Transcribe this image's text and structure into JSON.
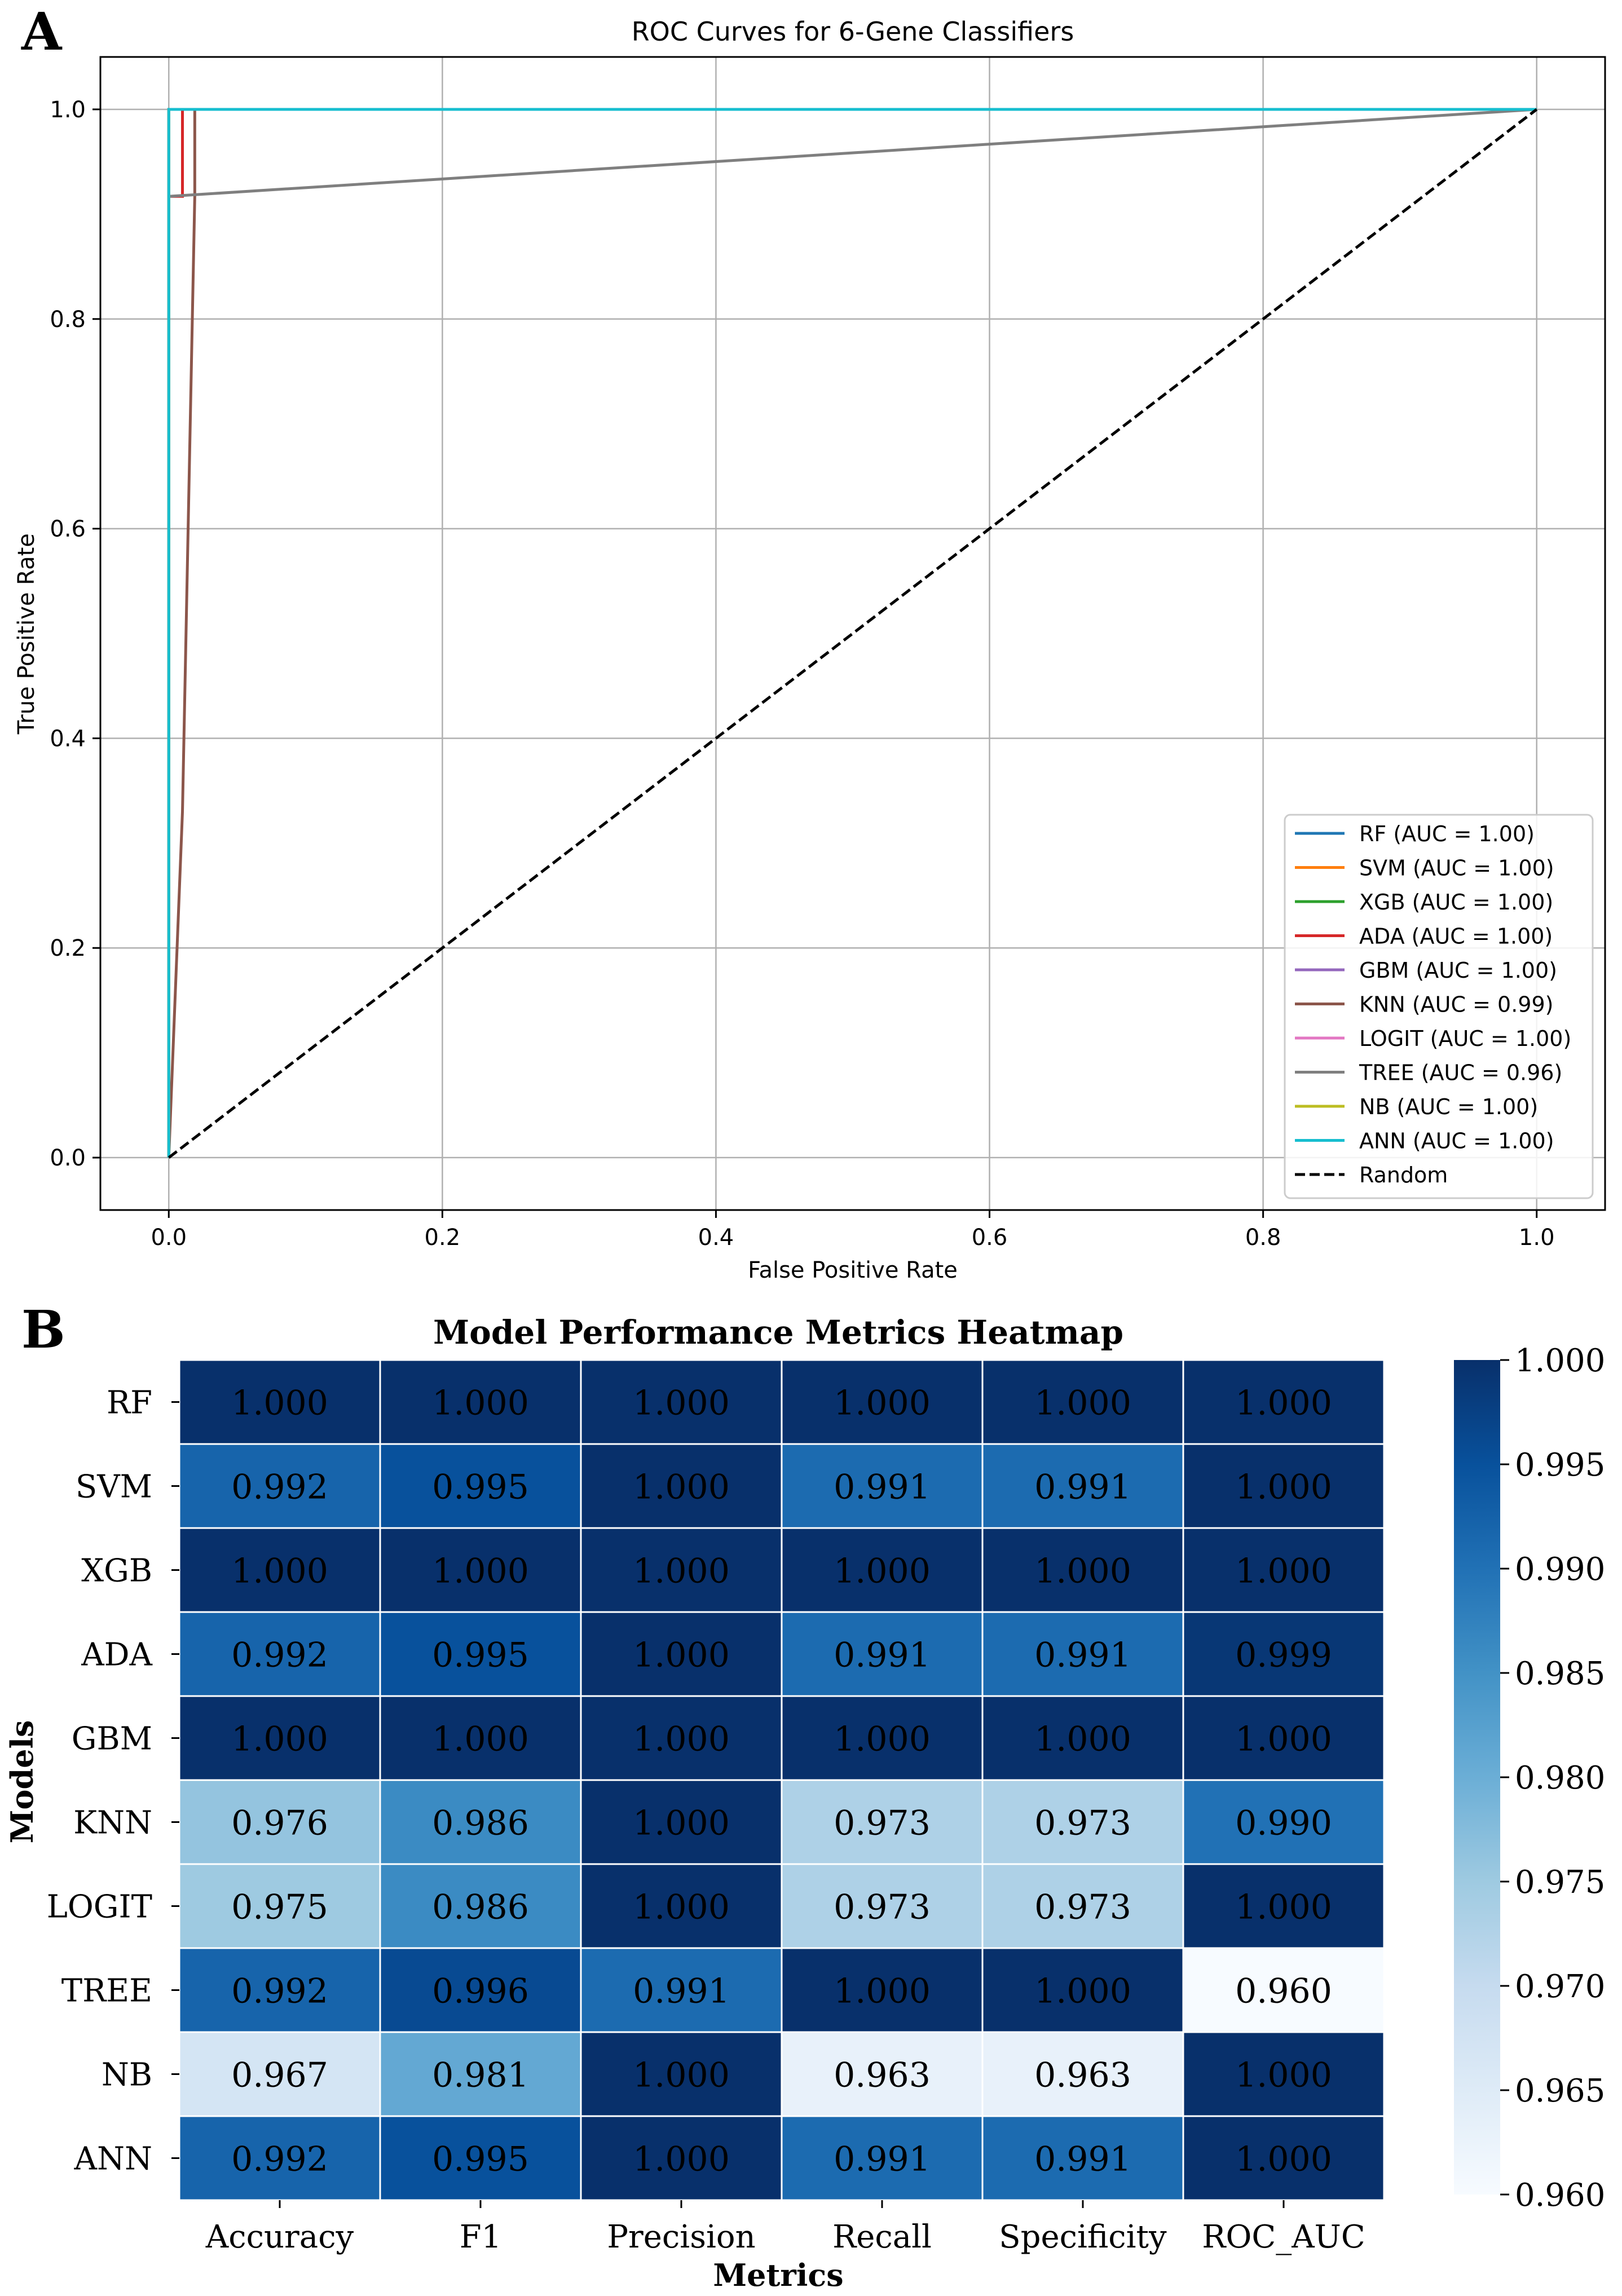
{
  "panel_a": {
    "panel_label": "A",
    "chart_data": {
      "type": "line",
      "title": "ROC Curves for 6-Gene Classifiers",
      "xlabel": "False Positive Rate",
      "ylabel": "True Positive Rate",
      "xlim": [
        -0.05,
        1.05
      ],
      "ylim": [
        -0.05,
        1.05
      ],
      "xticks": [
        "0.0",
        "0.2",
        "0.4",
        "0.6",
        "0.8",
        "1.0"
      ],
      "yticks": [
        "0.0",
        "0.2",
        "0.4",
        "0.6",
        "0.8",
        "1.0"
      ],
      "grid": true,
      "legend_position": "lower-right",
      "series": [
        {
          "name": "RF (AUC = 1.00)",
          "color": "#1f77b4",
          "dash": "solid",
          "x": [
            0,
            0,
            1
          ],
          "y": [
            0,
            1,
            1
          ]
        },
        {
          "name": "SVM (AUC = 1.00)",
          "color": "#ff7f0e",
          "dash": "solid",
          "x": [
            0,
            0,
            1
          ],
          "y": [
            0,
            1,
            1
          ]
        },
        {
          "name": "XGB (AUC = 1.00)",
          "color": "#2ca02c",
          "dash": "solid",
          "x": [
            0,
            0,
            1
          ],
          "y": [
            0,
            1,
            1
          ]
        },
        {
          "name": "ADA (AUC = 1.00)",
          "color": "#d62728",
          "dash": "solid",
          "x": [
            0,
            0,
            0.01,
            0.01,
            1
          ],
          "y": [
            0,
            0.917,
            0.917,
            1,
            1
          ]
        },
        {
          "name": "GBM (AUC = 1.00)",
          "color": "#9467bd",
          "dash": "solid",
          "x": [
            0,
            0,
            1
          ],
          "y": [
            0,
            1,
            1
          ]
        },
        {
          "name": "KNN (AUC = 0.99)",
          "color": "#8c564b",
          "dash": "solid",
          "x": [
            0,
            0.01,
            0.019,
            0.019,
            1
          ],
          "y": [
            0,
            0.33,
            0.917,
            1,
            1
          ]
        },
        {
          "name": "LOGIT (AUC = 1.00)",
          "color": "#e377c2",
          "dash": "solid",
          "x": [
            0,
            0,
            1
          ],
          "y": [
            0,
            1,
            1
          ]
        },
        {
          "name": "TREE (AUC = 0.96)",
          "color": "#7f7f7f",
          "dash": "solid",
          "x": [
            0,
            0,
            1
          ],
          "y": [
            0,
            0.917,
            1
          ]
        },
        {
          "name": "NB (AUC = 1.00)",
          "color": "#bcbd22",
          "dash": "solid",
          "x": [
            0,
            0,
            1
          ],
          "y": [
            0,
            1,
            1
          ]
        },
        {
          "name": "ANN (AUC = 1.00)",
          "color": "#17becf",
          "dash": "solid",
          "x": [
            0,
            0,
            1
          ],
          "y": [
            0,
            1,
            1
          ]
        },
        {
          "name": "Random",
          "color": "#000000",
          "dash": "dashed",
          "x": [
            0,
            1
          ],
          "y": [
            0,
            1
          ]
        }
      ]
    }
  },
  "panel_b": {
    "panel_label": "B",
    "chart_data": {
      "type": "heatmap",
      "title": "Model Performance Metrics Heatmap",
      "xlabel": "Metrics",
      "ylabel": "Models",
      "columns": [
        "Accuracy",
        "F1",
        "Precision",
        "Recall",
        "Specificity",
        "ROC_AUC"
      ],
      "rows": [
        "RF",
        "SVM",
        "XGB",
        "ADA",
        "GBM",
        "KNN",
        "LOGIT",
        "TREE",
        "NB",
        "ANN"
      ],
      "values": [
        [
          1.0,
          1.0,
          1.0,
          1.0,
          1.0,
          1.0
        ],
        [
          0.992,
          0.995,
          1.0,
          0.991,
          0.991,
          1.0
        ],
        [
          1.0,
          1.0,
          1.0,
          1.0,
          1.0,
          1.0
        ],
        [
          0.992,
          0.995,
          1.0,
          0.991,
          0.991,
          0.999
        ],
        [
          1.0,
          1.0,
          1.0,
          1.0,
          1.0,
          1.0
        ],
        [
          0.976,
          0.986,
          1.0,
          0.973,
          0.973,
          0.99
        ],
        [
          0.975,
          0.986,
          1.0,
          0.973,
          0.973,
          1.0
        ],
        [
          0.992,
          0.996,
          0.991,
          1.0,
          1.0,
          0.96
        ],
        [
          0.967,
          0.981,
          1.0,
          0.963,
          0.963,
          1.0
        ],
        [
          0.992,
          0.995,
          1.0,
          0.991,
          0.991,
          1.0
        ]
      ],
      "labels": [
        [
          "1.000",
          "1.000",
          "1.000",
          "1.000",
          "1.000",
          "1.000"
        ],
        [
          "0.992",
          "0.995",
          "1.000",
          "0.991",
          "0.991",
          "1.000"
        ],
        [
          "1.000",
          "1.000",
          "1.000",
          "1.000",
          "1.000",
          "1.000"
        ],
        [
          "0.992",
          "0.995",
          "1.000",
          "0.991",
          "0.991",
          "0.999"
        ],
        [
          "1.000",
          "1.000",
          "1.000",
          "1.000",
          "1.000",
          "1.000"
        ],
        [
          "0.976",
          "0.986",
          "1.000",
          "0.973",
          "0.973",
          "0.990"
        ],
        [
          "0.975",
          "0.986",
          "1.000",
          "0.973",
          "0.973",
          "1.000"
        ],
        [
          "0.992",
          "0.996",
          "0.991",
          "1.000",
          "1.000",
          "0.960"
        ],
        [
          "0.967",
          "0.981",
          "1.000",
          "0.963",
          "0.963",
          "1.000"
        ],
        [
          "0.992",
          "0.995",
          "1.000",
          "0.991",
          "0.991",
          "1.000"
        ]
      ],
      "vmin": 0.96,
      "vmax": 1.0,
      "colormap": "Blues",
      "colorbar_ticks": [
        1.0,
        0.995,
        0.99,
        0.985,
        0.98,
        0.975,
        0.97,
        0.965,
        0.96
      ],
      "colorbar_tick_labels": [
        "1.000",
        "0.995",
        "0.990",
        "0.985",
        "0.980",
        "0.975",
        "0.970",
        "0.965",
        "0.960"
      ]
    }
  }
}
